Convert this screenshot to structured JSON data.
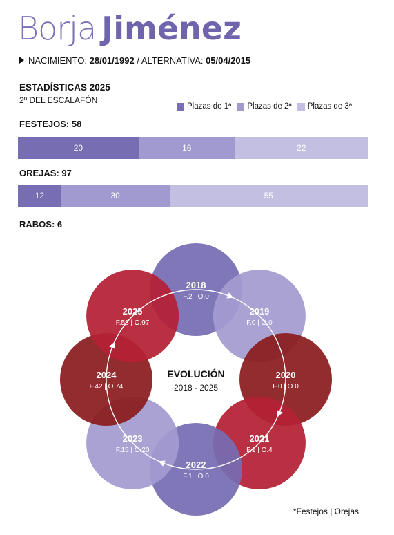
{
  "header": {
    "first_name": "Borja",
    "last_name": "Jiménez",
    "nacimiento_label": "NACIMIENTO:",
    "nacimiento": "28/01/1992",
    "separator": "/",
    "alternativa_label": "ALTERNATIVA:",
    "alternativa": "05/04/2015"
  },
  "stats": {
    "title": "ESTADÍSTICAS 2025",
    "rank": "2º DEL ESCALAFÓN"
  },
  "legend": [
    {
      "label": "Plazas de 1ª",
      "color": "#766db3"
    },
    {
      "label": "Plazas de 2ª",
      "color": "#a09ad0"
    },
    {
      "label": "Plazas de 3ª",
      "color": "#c3bfe2"
    }
  ],
  "festejos": {
    "label": "FESTEJOS: 58",
    "segments": [
      {
        "value": 20,
        "color": "#766db3"
      },
      {
        "value": 16,
        "color": "#a09ad0"
      },
      {
        "value": 22,
        "color": "#c3bfe2"
      }
    ]
  },
  "orejas": {
    "label": "OREJAS: 97",
    "segments": [
      {
        "value": 12,
        "color": "#766db3"
      },
      {
        "value": 30,
        "color": "#a09ad0"
      },
      {
        "value": 55,
        "color": "#c3bfe2"
      }
    ]
  },
  "rabos": {
    "label": "RABOS: 6"
  },
  "chart_data": {
    "type": "table",
    "title": "EVOLUCIÓN",
    "subtitle": "2018 - 2025",
    "years": [
      {
        "year": "2018",
        "stats": "F.2 | O.0",
        "color": "#766db3"
      },
      {
        "year": "2019",
        "stats": "F.0 | O.0",
        "color": "#a39bd0"
      },
      {
        "year": "2020",
        "stats": "F.0 | O.0",
        "color": "#8a1c1e"
      },
      {
        "year": "2021",
        "stats": "F.1 | O.4",
        "color": "#b52035"
      },
      {
        "year": "2022",
        "stats": "F.1 | O.0",
        "color": "#766db3"
      },
      {
        "year": "2023",
        "stats": "F.15 | O.20",
        "color": "#a39bd0"
      },
      {
        "year": "2024",
        "stats": "F.42 | O.74",
        "color": "#8a1c1e"
      },
      {
        "year": "2025",
        "stats": "F.58 | O.97",
        "color": "#b52035"
      }
    ]
  },
  "footnote": "*Festejos | Orejas"
}
